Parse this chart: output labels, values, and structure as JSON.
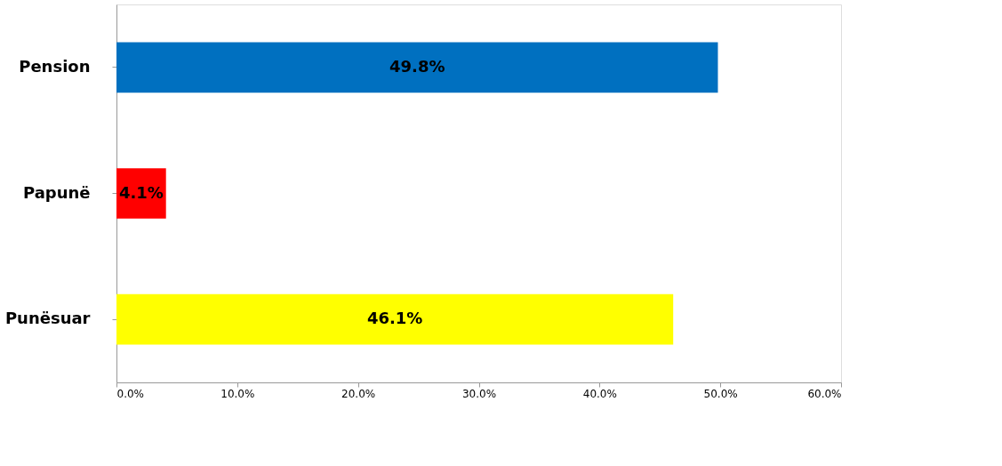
{
  "chart_data": {
    "type": "bar",
    "orientation": "horizontal",
    "categories": [
      "Pension",
      "Papunë",
      "Punësuar"
    ],
    "values": [
      49.8,
      4.1,
      46.1
    ],
    "colors": [
      "#0070c0",
      "#ff0000",
      "#ffff00"
    ],
    "value_labels": [
      "49.8%",
      "4.1%",
      "46.1%"
    ],
    "xlim": [
      0,
      60
    ],
    "xticks": [
      {
        "value": 0,
        "label": "0.0%"
      },
      {
        "value": 10,
        "label": "10.0%"
      },
      {
        "value": 20,
        "label": "20.0%"
      },
      {
        "value": 30,
        "label": "30.0%"
      },
      {
        "value": 40,
        "label": "40.0%"
      },
      {
        "value": 50,
        "label": "50.0%"
      },
      {
        "value": 60,
        "label": "60.0%"
      }
    ],
    "grid": false
  }
}
